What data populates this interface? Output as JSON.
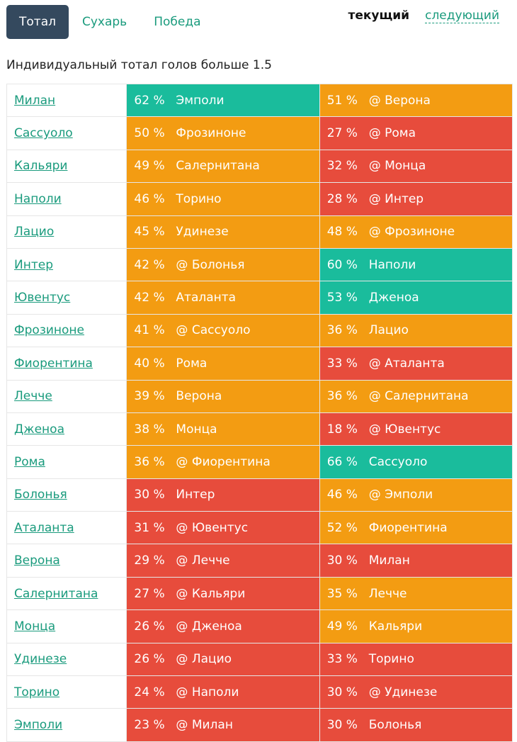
{
  "tabs": [
    {
      "label": "Тотал",
      "active": true
    },
    {
      "label": "Сухарь",
      "active": false
    },
    {
      "label": "Победа",
      "active": false
    }
  ],
  "periods": {
    "current": "текущий",
    "next": "следующий"
  },
  "subtitle": "Индивидуальный тотал голов больше 1.5",
  "colors": {
    "green": "#1abc9c",
    "orange": "#f39c12",
    "red": "#e74c3c",
    "link": "#1a9b7d",
    "active_tab": "#34495e"
  },
  "rows": [
    {
      "team": "Милан",
      "cur": {
        "pct": "62 %",
        "opp": "Эмполи",
        "color": "green"
      },
      "next": {
        "pct": "51 %",
        "opp": "@ Верона",
        "color": "orange"
      }
    },
    {
      "team": "Сассуоло",
      "cur": {
        "pct": "50 %",
        "opp": "Фрозиноне",
        "color": "orange"
      },
      "next": {
        "pct": "27 %",
        "opp": "@ Рома",
        "color": "red"
      }
    },
    {
      "team": "Кальяри",
      "cur": {
        "pct": "49 %",
        "opp": "Салернитана",
        "color": "orange"
      },
      "next": {
        "pct": "32 %",
        "opp": "@ Монца",
        "color": "red"
      }
    },
    {
      "team": "Наполи",
      "cur": {
        "pct": "46 %",
        "opp": "Торино",
        "color": "orange"
      },
      "next": {
        "pct": "28 %",
        "opp": "@ Интер",
        "color": "red"
      }
    },
    {
      "team": "Лацио",
      "cur": {
        "pct": "45 %",
        "opp": "Удинезе",
        "color": "orange"
      },
      "next": {
        "pct": "48 %",
        "opp": "@ Фрозиноне",
        "color": "orange"
      }
    },
    {
      "team": "Интер",
      "cur": {
        "pct": "42 %",
        "opp": "@ Болонья",
        "color": "orange"
      },
      "next": {
        "pct": "60 %",
        "opp": "Наполи",
        "color": "green"
      }
    },
    {
      "team": "Ювентус",
      "cur": {
        "pct": "42 %",
        "opp": "Аталанта",
        "color": "orange"
      },
      "next": {
        "pct": "53 %",
        "opp": "Дженоа",
        "color": "green"
      }
    },
    {
      "team": "Фрозиноне",
      "cur": {
        "pct": "41 %",
        "opp": "@ Сассуоло",
        "color": "orange"
      },
      "next": {
        "pct": "36 %",
        "opp": "Лацио",
        "color": "orange"
      }
    },
    {
      "team": "Фиорентина",
      "cur": {
        "pct": "40 %",
        "opp": "Рома",
        "color": "orange"
      },
      "next": {
        "pct": "33 %",
        "opp": "@ Аталанта",
        "color": "red"
      }
    },
    {
      "team": "Лечче",
      "cur": {
        "pct": "39 %",
        "opp": "Верона",
        "color": "orange"
      },
      "next": {
        "pct": "36 %",
        "opp": "@ Салернитана",
        "color": "orange"
      }
    },
    {
      "team": "Дженоа",
      "cur": {
        "pct": "38 %",
        "opp": "Монца",
        "color": "orange"
      },
      "next": {
        "pct": "18 %",
        "opp": "@ Ювентус",
        "color": "red"
      }
    },
    {
      "team": "Рома",
      "cur": {
        "pct": "36 %",
        "opp": "@ Фиорентина",
        "color": "orange"
      },
      "next": {
        "pct": "66 %",
        "opp": "Сассуоло",
        "color": "green"
      }
    },
    {
      "team": "Болонья",
      "cur": {
        "pct": "30 %",
        "opp": "Интер",
        "color": "red"
      },
      "next": {
        "pct": "46 %",
        "opp": "@ Эмполи",
        "color": "orange"
      }
    },
    {
      "team": "Аталанта",
      "cur": {
        "pct": "31 %",
        "opp": "@ Ювентус",
        "color": "red"
      },
      "next": {
        "pct": "52 %",
        "opp": "Фиорентина",
        "color": "orange"
      }
    },
    {
      "team": "Верона",
      "cur": {
        "pct": "29 %",
        "opp": "@ Лечче",
        "color": "red"
      },
      "next": {
        "pct": "30 %",
        "opp": "Милан",
        "color": "red"
      }
    },
    {
      "team": "Салернитана",
      "cur": {
        "pct": "27 %",
        "opp": "@ Кальяри",
        "color": "red"
      },
      "next": {
        "pct": "35 %",
        "opp": "Лечче",
        "color": "orange"
      }
    },
    {
      "team": "Монца",
      "cur": {
        "pct": "26 %",
        "opp": "@ Дженоа",
        "color": "red"
      },
      "next": {
        "pct": "49 %",
        "opp": "Кальяри",
        "color": "orange"
      }
    },
    {
      "team": "Удинезе",
      "cur": {
        "pct": "26 %",
        "opp": "@ Лацио",
        "color": "red"
      },
      "next": {
        "pct": "33 %",
        "opp": "Торино",
        "color": "red"
      }
    },
    {
      "team": "Торино",
      "cur": {
        "pct": "24 %",
        "opp": "@ Наполи",
        "color": "red"
      },
      "next": {
        "pct": "30 %",
        "opp": "@ Удинезе",
        "color": "red"
      }
    },
    {
      "team": "Эмполи",
      "cur": {
        "pct": "23 %",
        "opp": "@ Милан",
        "color": "red"
      },
      "next": {
        "pct": "30 %",
        "opp": "Болонья",
        "color": "red"
      }
    }
  ]
}
